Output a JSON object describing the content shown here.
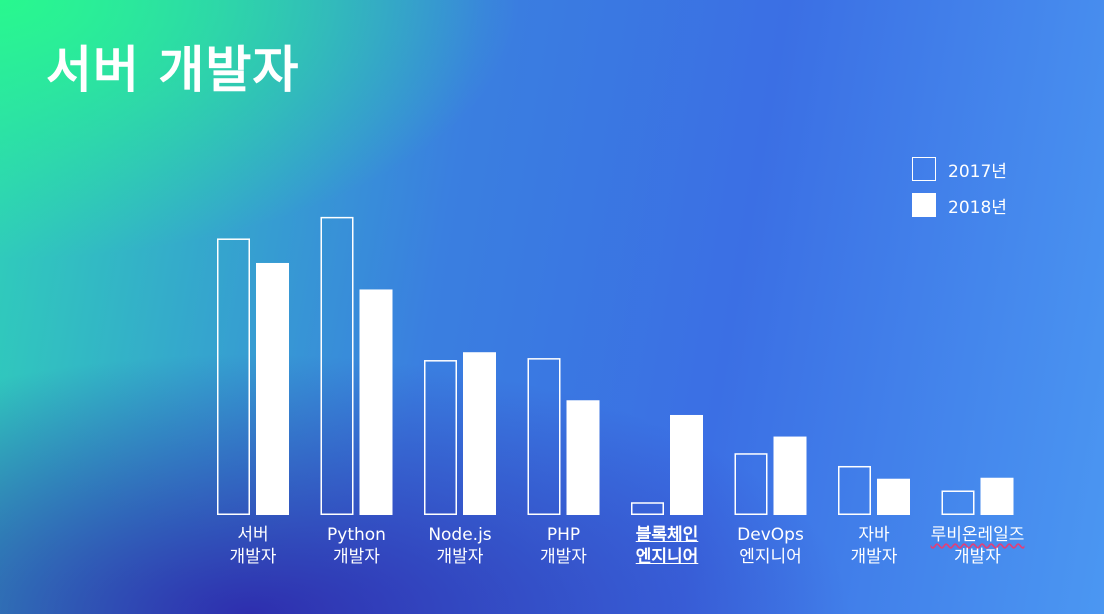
{
  "slide": {
    "title": "서버 개발자"
  },
  "legend": {
    "items": [
      {
        "label": "2017년",
        "style": "outline"
      },
      {
        "label": "2018년",
        "style": "filled"
      }
    ]
  },
  "chart_data": {
    "type": "bar",
    "title": "서버 개발자",
    "categories": [
      "서버\n개발자",
      "Python\n개발자",
      "Node.js\n개발자",
      "PHP\n개발자",
      "블록체인\n엔지니어",
      "DevOps\n엔지니어",
      "자바\n개발자",
      "루비온레일즈\n개발자"
    ],
    "series": [
      {
        "name": "2017년",
        "values": [
          282,
          304,
          158,
          160,
          13,
          63,
          50,
          25
        ]
      },
      {
        "name": "2018년",
        "values": [
          257,
          230,
          166,
          117,
          102,
          80,
          37,
          38
        ]
      }
    ],
    "ylim": [
      0,
      310
    ],
    "grid": false,
    "legend_position": "top-right",
    "highlighted_category_index": 4,
    "colors": {
      "bar": "#ffffff",
      "outline": "#ffffff"
    }
  }
}
